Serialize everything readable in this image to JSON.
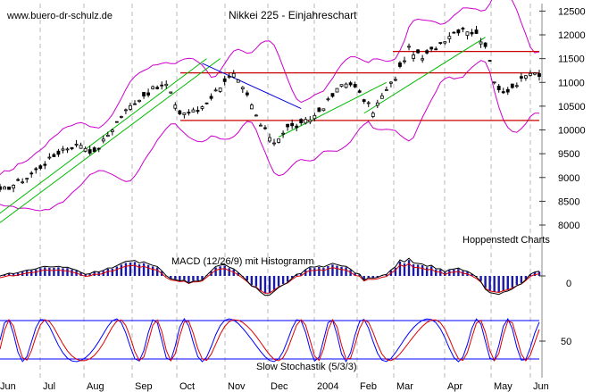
{
  "site_label": "www.buero-dr-schulz.de",
  "title": "Nikkei 225 - Einjahreschart",
  "source_label": "Hoppenstedt Charts",
  "macd_label": "MACD (12/26/9) mit Histogramm",
  "stoch_label": "Slow Stochastik (5/3/3)",
  "colors": {
    "background": "#ffffff",
    "grid": "#b8b8b8",
    "candle": "#000000",
    "bollinger": "#cc00cc",
    "resistance": "#cc0000",
    "uptrend": "#00bb00",
    "downtrend": "#0000dd",
    "macd_hist": "#1a1aa8",
    "line_red": "#dd0000",
    "line_blue": "#0000ff"
  },
  "chart_data": {
    "type": "candlestick",
    "x_ticks": [
      "Jun",
      "Jul",
      "Aug",
      "Sep",
      "Oct",
      "Nov",
      "Dec",
      "2004",
      "Feb",
      "Mar",
      "Apr",
      "May",
      "Jun"
    ],
    "price_axis": {
      "ticks": [
        8000,
        8500,
        9000,
        9500,
        10000,
        10500,
        11000,
        11500,
        12000,
        12500
      ],
      "ylim": [
        7700,
        12620
      ]
    },
    "price_path": [
      [
        0,
        8700
      ],
      [
        6,
        9000
      ],
      [
        10,
        9300
      ],
      [
        14,
        9600
      ],
      [
        18,
        9700
      ],
      [
        21,
        9500
      ],
      [
        24,
        9900
      ],
      [
        27,
        10300
      ],
      [
        30,
        10600
      ],
      [
        34,
        10850
      ],
      [
        37,
        10950
      ],
      [
        40,
        10350
      ],
      [
        44,
        10400
      ],
      [
        47,
        10700
      ],
      [
        50,
        11050
      ],
      [
        52,
        11150
      ],
      [
        55,
        10700
      ],
      [
        58,
        10100
      ],
      [
        61,
        9750
      ],
      [
        64,
        10050
      ],
      [
        67,
        10100
      ],
      [
        70,
        10300
      ],
      [
        73,
        10600
      ],
      [
        76,
        10950
      ],
      [
        78,
        11000
      ],
      [
        80,
        10750
      ],
      [
        83,
        10400
      ],
      [
        85,
        10700
      ],
      [
        88,
        11100
      ],
      [
        91,
        11700
      ],
      [
        94,
        11500
      ],
      [
        97,
        11750
      ],
      [
        100,
        12000
      ],
      [
        103,
        12150
      ],
      [
        106,
        12000
      ],
      [
        108,
        11800
      ],
      [
        110,
        11000
      ],
      [
        112,
        10800
      ],
      [
        115,
        10950
      ],
      [
        118,
        11200
      ],
      [
        120,
        11150
      ]
    ],
    "resistance_levels": [
      11200,
      10200
    ],
    "short_resistance": 11650,
    "uptrend_lines": [
      {
        "from": [
          0,
          8250
        ],
        "to": [
          46,
          11500
        ]
      },
      {
        "from": [
          0,
          8050
        ],
        "to": [
          49,
          11500
        ]
      },
      {
        "from": [
          62,
          9850
        ],
        "to": [
          86,
          11000
        ]
      },
      {
        "from": [
          81,
          10350
        ],
        "to": [
          108,
          11950
        ]
      }
    ],
    "downtrend_line": {
      "from": [
        45,
        11400
      ],
      "to": [
        67,
        10450
      ]
    },
    "macd": {
      "zero_label": "0"
    },
    "stochastic": {
      "levels": [
        80,
        20
      ],
      "label_50": "50"
    }
  }
}
